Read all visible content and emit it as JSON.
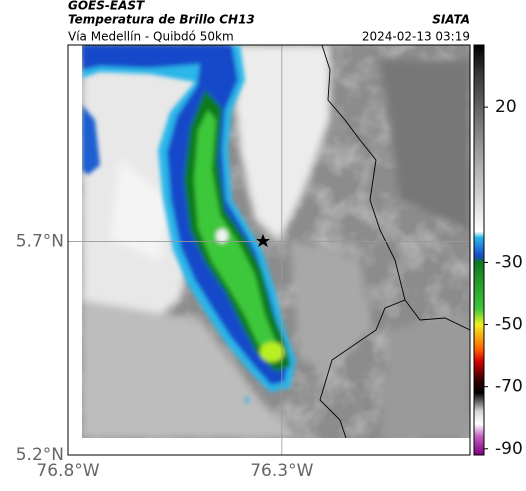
{
  "header": {
    "satellite": "GOES-EAST",
    "product": "Temperatura de Brillo CH13",
    "source": "SIATA",
    "route": "Vía Medellín - Quibdó 50km",
    "datetime": "2024-02-13 03:19"
  },
  "map": {
    "lat_range": [
      5.2,
      6.16
    ],
    "lon_range": [
      -76.8,
      -75.86
    ],
    "lat_ticks": [
      {
        "value": 5.7,
        "label": "5.7°N"
      },
      {
        "value": 5.2,
        "label": "5.2°N"
      }
    ],
    "lon_ticks": [
      {
        "value": -76.8,
        "label": "76.8°W"
      },
      {
        "value": -76.3,
        "label": "76.3°W"
      }
    ],
    "grid_color": "#999999"
  },
  "colorbar": {
    "range": [
      -92,
      40
    ],
    "ticks": [
      20,
      -30,
      -50,
      -70,
      -90
    ],
    "stops": [
      [
        40,
        "#000000"
      ],
      [
        30,
        "#3a3a3a"
      ],
      [
        10,
        "#8c8c8c"
      ],
      [
        -20,
        "#ffffff"
      ],
      [
        -22,
        "#29b6e8"
      ],
      [
        -28,
        "#1749c9"
      ],
      [
        -30,
        "#0e7a1e"
      ],
      [
        -45,
        "#3ec83a"
      ],
      [
        -50,
        "#f0f020"
      ],
      [
        -58,
        "#ff6000"
      ],
      [
        -62,
        "#d00000"
      ],
      [
        -68,
        "#300000"
      ],
      [
        -72,
        "#000000"
      ],
      [
        -78,
        "#d8d8d8"
      ],
      [
        -82,
        "#ffffff"
      ],
      [
        -86,
        "#c060c0"
      ],
      [
        -92,
        "#800080"
      ]
    ]
  }
}
